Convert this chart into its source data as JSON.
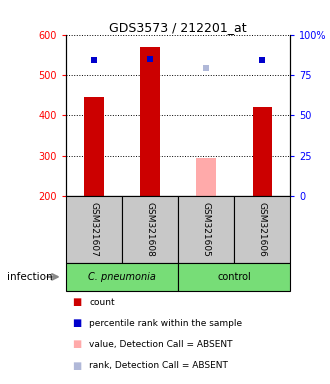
{
  "title": "GDS3573 / 212201_at",
  "samples": [
    "GSM321607",
    "GSM321608",
    "GSM321605",
    "GSM321606"
  ],
  "bar_values": [
    445,
    570,
    295,
    420
  ],
  "bar_absent": [
    false,
    false,
    true,
    false
  ],
  "dot_values": [
    84,
    85,
    79,
    84
  ],
  "dot_absent": [
    false,
    false,
    true,
    false
  ],
  "bar_colors_present": "#cc0000",
  "bar_colors_absent": "#ffaaaa",
  "dot_colors_present": "#0000cc",
  "dot_colors_absent": "#b0b8d8",
  "ylim_left": [
    200,
    600
  ],
  "ylim_right": [
    0,
    100
  ],
  "yticks_left": [
    200,
    300,
    400,
    500,
    600
  ],
  "yticks_right": [
    0,
    25,
    50,
    75,
    100
  ],
  "ytick_labels_right": [
    "0",
    "25",
    "50",
    "75",
    "100%"
  ],
  "bar_base": 200,
  "group_label": "infection",
  "cpneumonia_color": "#77dd77",
  "control_color": "#77dd77",
  "bg_color": "#c8c8c8",
  "legend_items": [
    {
      "color": "#cc0000",
      "label": "count"
    },
    {
      "color": "#0000cc",
      "label": "percentile rank within the sample"
    },
    {
      "color": "#ffaaaa",
      "label": "value, Detection Call = ABSENT"
    },
    {
      "color": "#b0b8d8",
      "label": "rank, Detection Call = ABSENT"
    }
  ]
}
